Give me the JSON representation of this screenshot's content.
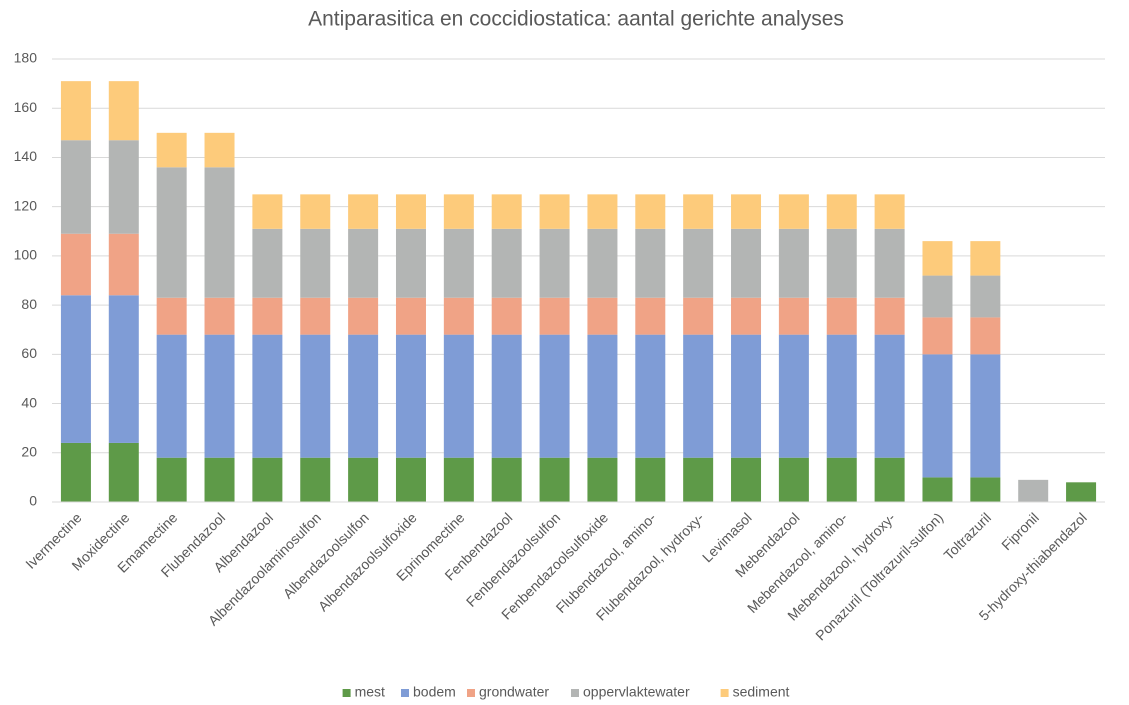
{
  "chart_data": {
    "type": "stacked_bar",
    "title": "Antiparasitica en coccidiostatica: aantal gerichte analyses",
    "categories": [
      "Ivermectine",
      "Moxidectine",
      "Emamectine",
      "Flubendazool",
      "Albendazool",
      "Albendazoolaminosulfon",
      "Albendazoolsulfon",
      "Albendazoolsulfoxide",
      "Eprinomectine",
      "Fenbendazool",
      "Fenbendazoolsulfon",
      "Fenbendazoolsulfoxide",
      "Flubendazool, amino-",
      "Flubendazool, hydroxy-",
      "Levimasol",
      "Mebendazool",
      "Mebendazool, amino-",
      "Mebendazool, hydroxy-",
      "Ponazuril (Toltrazuril-sulfon)",
      "Toltrazuril",
      "Fipronil",
      "5-hydroxy-thiabendazol"
    ],
    "series": [
      {
        "name": "mest",
        "color": "#5e9a48",
        "values": [
          24,
          24,
          18,
          18,
          18,
          18,
          18,
          18,
          18,
          18,
          18,
          18,
          18,
          18,
          18,
          18,
          18,
          18,
          10,
          10,
          0,
          8
        ]
      },
      {
        "name": "bodem",
        "color": "#7f9cd6",
        "values": [
          60,
          60,
          50,
          50,
          50,
          50,
          50,
          50,
          50,
          50,
          50,
          50,
          50,
          50,
          50,
          50,
          50,
          50,
          50,
          50,
          0,
          0
        ]
      },
      {
        "name": "grondwater",
        "color": "#f0a386",
        "values": [
          25,
          25,
          15,
          15,
          15,
          15,
          15,
          15,
          15,
          15,
          15,
          15,
          15,
          15,
          15,
          15,
          15,
          15,
          15,
          15,
          0,
          0
        ]
      },
      {
        "name": "oppervlaktewater",
        "color": "#b3b5b4",
        "values": [
          38,
          38,
          53,
          53,
          28,
          28,
          28,
          28,
          28,
          28,
          28,
          28,
          28,
          28,
          28,
          28,
          28,
          28,
          17,
          17,
          9,
          0
        ]
      },
      {
        "name": "sediment",
        "color": "#fdcb7b",
        "values": [
          24,
          24,
          14,
          14,
          14,
          14,
          14,
          14,
          14,
          14,
          14,
          14,
          14,
          14,
          14,
          14,
          14,
          14,
          14,
          14,
          0,
          0
        ]
      }
    ],
    "ylim": [
      0,
      180
    ],
    "yticks": [
      0,
      20,
      40,
      60,
      80,
      100,
      120,
      140,
      160,
      180
    ],
    "grid": true,
    "legend": "bottom"
  }
}
